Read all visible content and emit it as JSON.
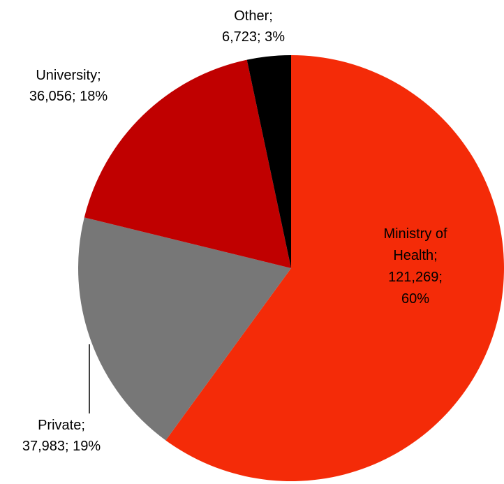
{
  "chart_data": {
    "type": "pie",
    "categories": [
      "Ministry of Health",
      "Private",
      "University",
      "Other"
    ],
    "values": [
      121269,
      37983,
      36056,
      6723
    ],
    "percents": [
      60,
      19,
      18,
      3
    ],
    "colors": [
      "#f42b08",
      "#777777",
      "#c00000",
      "#000000"
    ],
    "labels": [
      {
        "lines": [
          "Ministry of",
          "Health;",
          "121,269;",
          "60%"
        ]
      },
      {
        "lines": [
          "Private;",
          "37,983; 19%"
        ]
      },
      {
        "lines": [
          "University;",
          "36,056; 18%"
        ]
      },
      {
        "lines": [
          "Other;",
          "6,723; 3%"
        ]
      }
    ],
    "start_angle_deg": 0,
    "direction": "clockwise",
    "legend": "none",
    "title": ""
  }
}
